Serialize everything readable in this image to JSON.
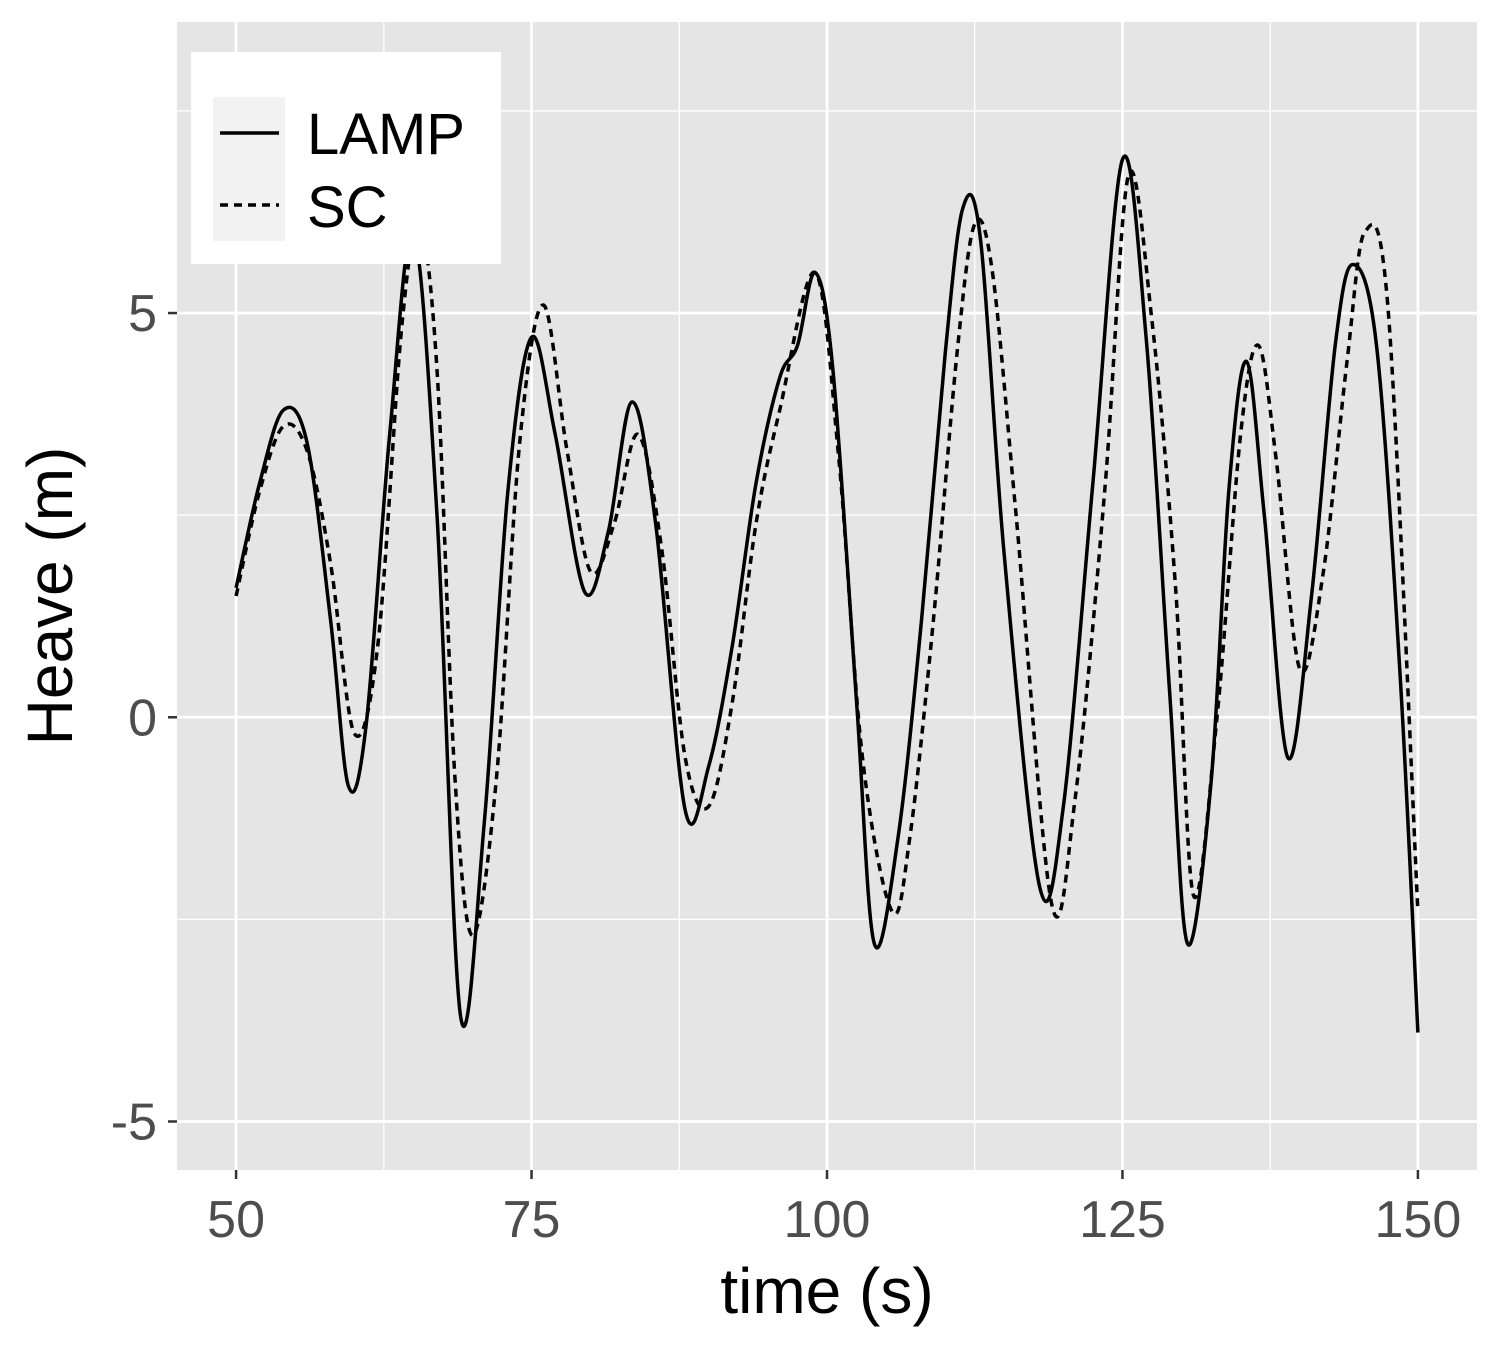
{
  "chart_data": {
    "type": "line",
    "title": "",
    "xlabel": "time (s)",
    "ylabel": "Heave (m)",
    "xlim": [
      45,
      155
    ],
    "ylim": [
      -5.6,
      8.6
    ],
    "x_ticks": [
      50,
      75,
      100,
      125,
      150
    ],
    "x_tick_labels": [
      "50",
      "75",
      "100",
      "125",
      "150"
    ],
    "y_ticks": [
      -5,
      0,
      5
    ],
    "y_tick_labels": [
      "-5",
      "0",
      "5"
    ],
    "grid": true,
    "legend": {
      "position": "top-left",
      "entries": [
        "LAMP",
        "SC"
      ]
    },
    "colors": {
      "panel": "#e5e5e5",
      "grid": "#ffffff",
      "line": "#000000",
      "legend_key": "#f2f2f2"
    },
    "series": [
      {
        "name": "LAMP",
        "style": "solid",
        "x": [
          50,
          52,
          54,
          56,
          58,
          59.5,
          61,
          63,
          65,
          67,
          69,
          71,
          73,
          75,
          77,
          79.5,
          81.5,
          83.5,
          85.5,
          88,
          90,
          92,
          94,
          96,
          97.5,
          99,
          100.5,
          102.5,
          104,
          106,
          108,
          110,
          111.5,
          113,
          115,
          118,
          120,
          122.5,
          125,
          127,
          129,
          130.5,
          132.5,
          134,
          135.5,
          137,
          139,
          141,
          143,
          144.5,
          146.5,
          148.5,
          150
        ],
        "y": [
          1.6,
          2.9,
          3.8,
          3.4,
          1.2,
          -0.85,
          -0.1,
          3.5,
          6.0,
          2.5,
          -3.7,
          -1.3,
          2.8,
          4.7,
          3.5,
          1.55,
          2.3,
          3.9,
          2.4,
          -1.15,
          -0.6,
          0.9,
          2.9,
          4.2,
          4.6,
          5.5,
          4.3,
          0.2,
          -2.8,
          -1.5,
          1.2,
          4.5,
          6.3,
          5.9,
          2.0,
          -2.1,
          -1.1,
          2.9,
          6.9,
          4.7,
          0.3,
          -2.8,
          -0.8,
          2.8,
          4.4,
          2.5,
          -0.5,
          1.5,
          4.6,
          5.6,
          4.6,
          0.5,
          -3.9
        ]
      },
      {
        "name": "SC",
        "style": "dashed",
        "x": [
          50,
          52,
          54,
          56,
          58,
          60,
          62,
          64,
          65.5,
          67,
          68.5,
          70,
          72,
          74,
          76,
          78,
          80,
          82,
          84,
          86,
          88,
          90,
          92,
          94,
          96,
          99,
          101,
          103,
          105.5,
          107,
          109,
          111,
          112.5,
          114,
          116,
          119,
          121,
          123.5,
          125.5,
          127.5,
          129.5,
          131,
          133,
          135,
          136.5,
          138,
          140,
          142,
          144,
          145.5,
          147.5,
          150
        ],
        "y": [
          1.5,
          2.8,
          3.6,
          3.3,
          1.9,
          -0.2,
          0.9,
          4.8,
          6.1,
          4.3,
          -0.7,
          -2.7,
          -0.8,
          3.4,
          5.1,
          3.3,
          1.8,
          2.4,
          3.5,
          2.1,
          -0.5,
          -1.1,
          0.2,
          2.4,
          3.8,
          5.5,
          3.2,
          -0.5,
          -2.4,
          -1.5,
          1.2,
          4.5,
          6.1,
          5.5,
          2.5,
          -2.3,
          -1.0,
          2.8,
          6.7,
          4.9,
          1.6,
          -2.2,
          0.0,
          3.5,
          4.6,
          3.2,
          0.6,
          1.8,
          4.4,
          6.0,
          5.0,
          -2.4
        ]
      }
    ]
  }
}
